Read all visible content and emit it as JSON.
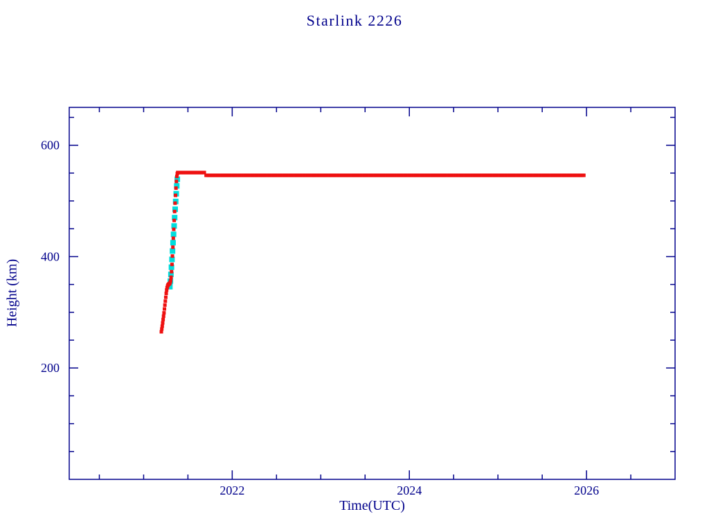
{
  "chart_data": {
    "type": "scatter",
    "title": "Starlink 2226",
    "xlabel": "Time(UTC)",
    "ylabel": "Height (km)",
    "grid": false,
    "legend": false,
    "colors": {
      "frame": "#00008B",
      "text": "#00008B",
      "primary": "#EE1111",
      "secondary": "#00DDDD",
      "background": "#FFFFFF"
    },
    "x_axis": {
      "range": [
        2020.16,
        2027.0
      ],
      "major_ticks": [
        2022,
        2024,
        2026
      ],
      "major_tick_labels": [
        "2022",
        "2024",
        "2026"
      ],
      "minor_step": 0.5
    },
    "y_axis": {
      "range": [
        0,
        668
      ],
      "major_ticks": [
        200,
        400,
        600
      ],
      "major_tick_labels": [
        "200",
        "400",
        "600"
      ],
      "minor_step": 50
    },
    "series": [
      {
        "name": "ascent-overlay",
        "color": "#00DDDD",
        "marker_size": 8,
        "points": [
          [
            2021.296,
            346
          ],
          [
            2021.302,
            356
          ],
          [
            2021.308,
            368
          ],
          [
            2021.314,
            381
          ],
          [
            2021.32,
            395
          ],
          [
            2021.326,
            410
          ],
          [
            2021.332,
            425
          ],
          [
            2021.338,
            440
          ],
          [
            2021.344,
            455
          ],
          [
            2021.35,
            470
          ],
          [
            2021.356,
            485
          ],
          [
            2021.362,
            499
          ],
          [
            2021.368,
            513
          ],
          [
            2021.374,
            527
          ],
          [
            2021.38,
            539
          ]
        ],
        "runs": []
      },
      {
        "name": "height-history",
        "color": "#EE1111",
        "marker_size": 5,
        "points": [
          [
            2021.2,
            265
          ],
          [
            2021.205,
            270
          ],
          [
            2021.21,
            275
          ],
          [
            2021.215,
            281
          ],
          [
            2021.22,
            287
          ],
          [
            2021.225,
            293
          ],
          [
            2021.23,
            299
          ],
          [
            2021.235,
            306
          ],
          [
            2021.24,
            313
          ],
          [
            2021.245,
            320
          ],
          [
            2021.25,
            327
          ],
          [
            2021.255,
            334
          ],
          [
            2021.26,
            340
          ],
          [
            2021.265,
            344
          ],
          [
            2021.27,
            347
          ],
          [
            2021.275,
            349
          ],
          [
            2021.28,
            350
          ],
          [
            2021.285,
            351
          ],
          [
            2021.29,
            351
          ],
          [
            2021.295,
            352
          ],
          [
            2021.3,
            354
          ],
          [
            2021.305,
            357
          ],
          [
            2021.31,
            363
          ],
          [
            2021.315,
            373
          ],
          [
            2021.32,
            386
          ],
          [
            2021.325,
            401
          ],
          [
            2021.33,
            417
          ],
          [
            2021.335,
            433
          ],
          [
            2021.34,
            449
          ],
          [
            2021.345,
            465
          ],
          [
            2021.35,
            481
          ],
          [
            2021.355,
            496
          ],
          [
            2021.36,
            510
          ],
          [
            2021.365,
            523
          ],
          [
            2021.37,
            535
          ],
          [
            2021.375,
            544
          ],
          [
            2021.38,
            549
          ],
          [
            2021.385,
            551
          ]
        ],
        "runs": [
          {
            "x_start": 2021.388,
            "x_end": 2021.685,
            "y": 551,
            "count": 60
          },
          {
            "x_start": 2021.705,
            "x_end": 2025.97,
            "y": 546,
            "count": 480
          }
        ]
      }
    ]
  }
}
